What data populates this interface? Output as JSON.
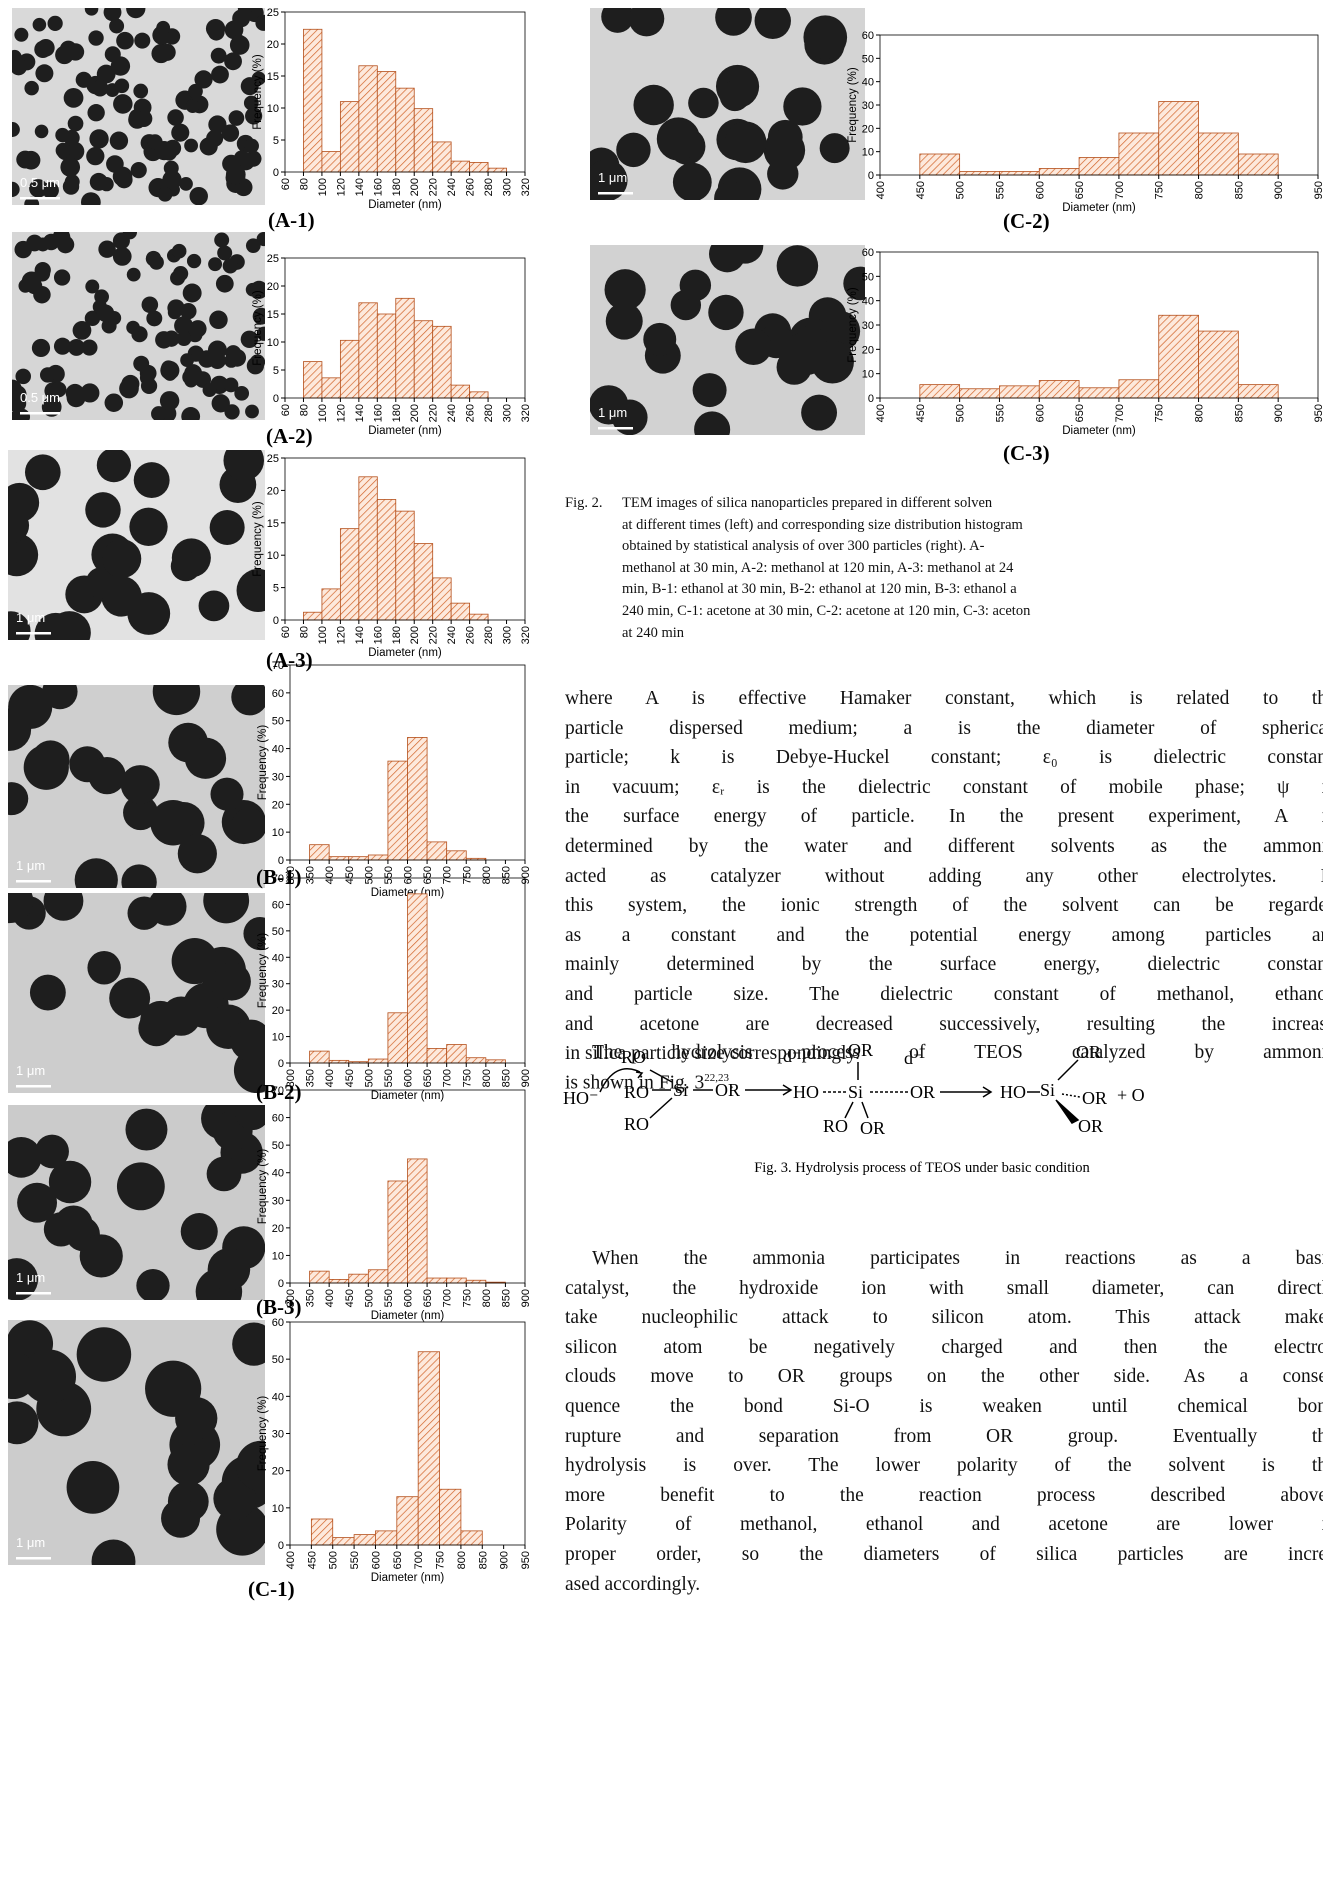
{
  "chart_data": [
    {
      "type": "histogram",
      "x_label": "Diameter (nm)",
      "y_label": "Frequency (%)",
      "color": "#d2642a",
      "bins": [
        80,
        100,
        120,
        140,
        160,
        180,
        200,
        220,
        240,
        260,
        280,
        300
      ],
      "values": [
        22.3,
        3.2,
        11,
        16.6,
        15.7,
        13.1,
        9.9,
        4.7,
        1.7,
        1.5,
        0.6
      ],
      "xlim": [
        60,
        320
      ],
      "xticks": [
        60,
        80,
        100,
        120,
        140,
        160,
        180,
        200,
        220,
        240,
        260,
        280,
        300,
        320
      ],
      "ylim": [
        0,
        25
      ],
      "yticks": [
        0,
        5,
        10,
        15,
        20,
        25
      ]
    },
    {
      "type": "histogram",
      "x_label": "Diameter (nm)",
      "y_label": "Frequency (%)",
      "color": "#d2642a",
      "bins": [
        80,
        100,
        120,
        140,
        160,
        180,
        200,
        220,
        240,
        260,
        280
      ],
      "values": [
        6.5,
        3.6,
        10.3,
        17,
        15,
        17.8,
        13.8,
        12.8,
        2.3,
        1.1
      ],
      "xlim": [
        60,
        320
      ],
      "xticks": [
        60,
        80,
        100,
        120,
        140,
        160,
        180,
        200,
        220,
        240,
        260,
        280,
        300,
        320
      ],
      "ylim": [
        0,
        25
      ],
      "yticks": [
        0,
        5,
        10,
        15,
        20,
        25
      ]
    },
    {
      "type": "histogram",
      "x_label": "Diameter (nm)",
      "y_label": "Frequency (%)",
      "color": "#d2642a",
      "bins": [
        80,
        100,
        120,
        140,
        160,
        180,
        200,
        220,
        240,
        260,
        280
      ],
      "values": [
        1.2,
        4.8,
        14.1,
        22.1,
        18.6,
        16.8,
        11.8,
        6.5,
        2.6,
        0.9
      ],
      "xlim": [
        60,
        320
      ],
      "xticks": [
        60,
        80,
        100,
        120,
        140,
        160,
        180,
        200,
        220,
        240,
        260,
        280,
        300,
        320
      ],
      "ylim": [
        0,
        25
      ],
      "yticks": [
        0,
        5,
        10,
        15,
        20,
        25
      ]
    },
    {
      "type": "histogram",
      "x_label": "Diameter (nm)",
      "y_label": "Frequency (%)",
      "color": "#d2642a",
      "bins": [
        350,
        400,
        450,
        500,
        550,
        600,
        650,
        700,
        750,
        800
      ],
      "values": [
        5.5,
        1.2,
        1.2,
        1.8,
        35.5,
        44,
        6.5,
        3.3,
        0.6
      ],
      "xlim": [
        300,
        900
      ],
      "xticks": [
        300,
        350,
        400,
        450,
        500,
        550,
        600,
        650,
        700,
        750,
        800,
        850,
        900
      ],
      "ylim": [
        0,
        70
      ],
      "yticks": [
        0,
        10,
        20,
        30,
        40,
        50,
        60,
        70
      ]
    },
    {
      "type": "histogram",
      "x_label": "Diameter (nm)",
      "y_label": "Frequency (%)",
      "color": "#d2642a",
      "bins": [
        350,
        400,
        450,
        500,
        550,
        600,
        650,
        700,
        750,
        800,
        850
      ],
      "values": [
        4.5,
        1,
        0.5,
        1.5,
        19,
        64,
        5.5,
        7,
        2,
        1.2
      ],
      "xlim": [
        300,
        900
      ],
      "xticks": [
        300,
        350,
        400,
        450,
        500,
        550,
        600,
        650,
        700,
        750,
        800,
        850,
        900
      ],
      "ylim": [
        0,
        70
      ],
      "yticks": [
        0,
        10,
        20,
        30,
        40,
        50,
        60,
        70
      ]
    },
    {
      "type": "histogram",
      "x_label": "Diameter (nm)",
      "y_label": "Frequency (%)",
      "color": "#d2642a",
      "bins": [
        350,
        400,
        450,
        500,
        550,
        600,
        650,
        700,
        750,
        800,
        850
      ],
      "values": [
        4.3,
        1.3,
        3.2,
        4.8,
        37,
        45,
        1.8,
        1.8,
        1,
        0.3
      ],
      "xlim": [
        300,
        900
      ],
      "xticks": [
        300,
        350,
        400,
        450,
        500,
        550,
        600,
        650,
        700,
        750,
        800,
        850,
        900
      ],
      "ylim": [
        0,
        70
      ],
      "yticks": [
        0,
        10,
        20,
        30,
        40,
        50,
        60,
        70
      ]
    },
    {
      "type": "histogram",
      "x_label": "Diameter (nm)",
      "y_label": "Frequency (%)",
      "color": "#d2642a",
      "bins": [
        450,
        500,
        550,
        600,
        650,
        700,
        750,
        800,
        850
      ],
      "values": [
        7,
        2,
        2.8,
        3.8,
        13,
        52,
        15,
        3.8
      ],
      "xlim": [
        400,
        950
      ],
      "xticks": [
        400,
        450,
        500,
        550,
        600,
        650,
        700,
        750,
        800,
        850,
        900,
        950
      ],
      "ylim": [
        0,
        60
      ],
      "yticks": [
        0,
        10,
        20,
        30,
        40,
        50,
        60
      ]
    },
    {
      "type": "histogram",
      "x_label": "Diameter (nm)",
      "y_label": "Frequency (%)",
      "color": "#d2642a",
      "bins": [
        450,
        500,
        550,
        600,
        650,
        700,
        750,
        800,
        850,
        900
      ],
      "values": [
        9,
        1.5,
        1.5,
        2.8,
        7.5,
        18,
        31.5,
        18,
        9
      ],
      "xlim": [
        400,
        950
      ],
      "xticks": [
        400,
        450,
        500,
        550,
        600,
        650,
        700,
        750,
        800,
        850,
        900,
        950
      ],
      "ylim": [
        0,
        60
      ],
      "yticks": [
        0,
        10,
        20,
        30,
        40,
        50,
        60
      ]
    },
    {
      "type": "histogram",
      "x_label": "Diameter (nm)",
      "y_label": "Frequency (%)",
      "color": "#d2642a",
      "bins": [
        450,
        500,
        550,
        600,
        650,
        700,
        750,
        800,
        850,
        900
      ],
      "values": [
        5.5,
        3.8,
        5,
        7.2,
        4.2,
        7.5,
        34,
        27.5,
        5.5
      ],
      "xlim": [
        400,
        950
      ],
      "xticks": [
        400,
        450,
        500,
        550,
        600,
        650,
        700,
        750,
        800,
        850,
        900,
        950
      ],
      "ylim": [
        0,
        60
      ],
      "yticks": [
        0,
        10,
        20,
        30,
        40,
        50,
        60
      ]
    }
  ],
  "panels": [
    {
      "label": "(A-1)",
      "scale_bar": "0.5 μm"
    },
    {
      "label": "(A-2)",
      "scale_bar": "0.5 μm"
    },
    {
      "label": "(A-3)",
      "scale_bar": "1 μm"
    },
    {
      "label": "(B-1)",
      "scale_bar": "1 μm"
    },
    {
      "label": "(B-2)",
      "scale_bar": "1 μm"
    },
    {
      "label": "(B-3)",
      "scale_bar": "1 μm"
    },
    {
      "label": "(C-1)",
      "scale_bar": "1 μm"
    },
    {
      "label": "(C-2)",
      "scale_bar": "1 μm"
    },
    {
      "label": "(C-3)",
      "scale_bar": "1 μm"
    }
  ],
  "figure2_caption": {
    "label": "Fig. 2.",
    "lines": [
      "TEM images of silica nanoparticles prepared in different solven",
      "at different times (left) and corresponding size distribution histogram",
      "obtained by statistical analysis of over 300 particles (right). A-",
      "methanol at 30 min, A-2: methanol at 120 min, A-3: methanol at 24",
      "min, B-1: ethanol at 30 min, B-2: ethanol at 120 min, B-3: ethanol a",
      "240 min, C-1: acetone at 30 min, C-2: acetone at 120 min, C-3: aceton",
      "at 240 min"
    ]
  },
  "paragraph_1": [
    "where A is effective Hamaker constant, which is related to th",
    "particle dispersed medium; a is the diameter of spherica",
    "particle; k is Debye-Huckel constant; ε₀ is dielectric constan",
    "in vacuum; εᵣ is the dielectric constant of mobile phase; ψ i",
    "the surface energy of particle. In the present experiment, A i",
    "determined by the water and different solvents as the ammoni",
    "acted as catalyzer without adding any other electrolytes. I",
    "this system, the ionic strength of the solvent can be regarde",
    "as a constant and the potential energy among particles ar",
    "mainly determined by the surface energy, dielectric constan",
    "and particle size. The dielectric constant of methanol, ethano",
    "and acetone are decreased successively, resulting the increas",
    "in silica particle size correspondingly."
  ],
  "paragraph_2": {
    "lines": [
      "The hydrolysis process of TEOS catalyzed by ammoni",
      "is shown in Fig. 3"
    ],
    "citation": "22,23",
    "end": "."
  },
  "scheme": {
    "labels": [
      "RO",
      "HO⁻",
      "RO",
      "Si",
      "OR",
      "RO",
      "d⁻",
      "OR",
      "d⁻",
      "HO",
      "Si",
      "OR",
      "RO",
      "OR",
      "HO",
      "Si",
      "OR",
      "OR",
      "OR",
      "+ O"
    ]
  },
  "figure3_caption": "Fig. 3. Hydrolysis process of TEOS under basic condition",
  "paragraph_3": [
    "When the ammonia participates in reactions as a basi",
    "catalyst, the hydroxide ion with small diameter, can directl",
    "take nucleophilic attack to silicon atom. This attack make",
    "silicon atom be negatively charged and then the electro",
    "clouds move to OR groups on the other side. As a conse",
    "quence the bond Si-O is weaken until chemical bon",
    "rupture and separation from OR group. Eventually th",
    "hydrolysis is over. The lower polarity of the solvent is th",
    "more benefit to the reaction process described above",
    "Polarity of methanol, ethanol and acetone are lower i",
    "proper order, so the diameters of silica particles are incre",
    "ased accordingly."
  ]
}
